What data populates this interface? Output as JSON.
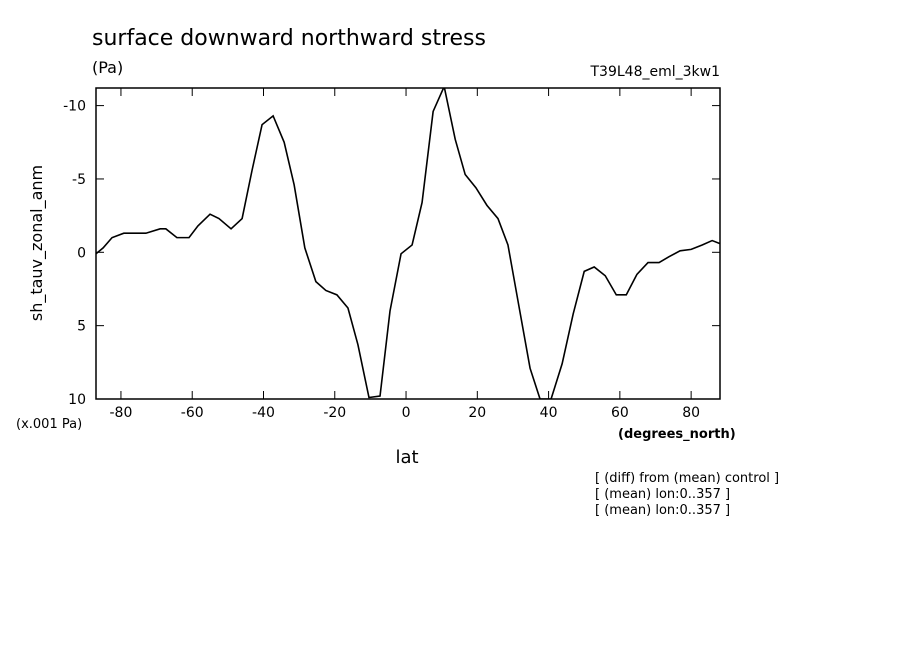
{
  "chart_data": {
    "type": "line",
    "title": "surface downward northward stress",
    "units": "(Pa)",
    "run_label": "T39L48_eml_3kw1",
    "ylabel": "sh_tauv_zonal_anm",
    "y_scale_label": "(x.001 Pa)",
    "x_units_label": "(degrees_north)",
    "xlabel": "lat",
    "notes": [
      "[ (diff) from (mean) control ]",
      "[ (mean) lon:0..357 ]",
      "[ (mean) lon:0..357 ]"
    ],
    "xlim": [
      -87,
      88.1
    ],
    "ylim": [
      10,
      -11.2
    ],
    "xticks": [
      -80,
      -60,
      -40,
      -20,
      0,
      20,
      40,
      60,
      80
    ],
    "yticks": [
      -10,
      -5,
      0,
      5,
      10
    ],
    "series": [
      {
        "color": "#000000",
        "x": [
          -87.0,
          -85.0,
          -82.5,
          -79.2,
          -73.0,
          -69.0,
          -67.4,
          -64.3,
          -60.9,
          -58.4,
          -55.0,
          -52.5,
          -49.1,
          -46.0,
          -43.2,
          -40.4,
          -37.3,
          -34.2,
          -31.4,
          -28.4,
          -25.3,
          -22.5,
          -19.4,
          -16.3,
          -13.5,
          -10.4,
          -7.3,
          -4.5,
          -1.4,
          1.7,
          4.5,
          7.6,
          10.7,
          13.8,
          16.6,
          19.6,
          22.7,
          25.8,
          28.6,
          31.7,
          34.8,
          37.6,
          40.7,
          43.8,
          46.9,
          50.0,
          52.8,
          55.9,
          59.0,
          61.8,
          64.8,
          67.9,
          71.0,
          73.8,
          76.9,
          80.0,
          83.1,
          85.9,
          88.0
        ],
        "values": [
          0.1,
          -0.3,
          -1.0,
          -1.3,
          -1.3,
          -1.6,
          -1.6,
          -1.0,
          -1.0,
          -1.8,
          -2.6,
          -2.3,
          -1.6,
          -2.3,
          -5.6,
          -8.7,
          -9.3,
          -7.5,
          -4.6,
          -0.3,
          2.0,
          2.6,
          2.9,
          3.8,
          6.3,
          9.9,
          9.8,
          4.0,
          0.1,
          -0.5,
          -3.4,
          -9.6,
          -11.3,
          -7.7,
          -5.3,
          -4.4,
          -3.2,
          -2.3,
          -0.5,
          3.7,
          7.9,
          10,
          10,
          7.6,
          4.2,
          1.3,
          1.0,
          1.6,
          2.9,
          2.9,
          1.5,
          0.7,
          0.7,
          0.3,
          -0.1,
          -0.2,
          -0.5,
          -0.8,
          -0.6
        ]
      }
    ]
  }
}
